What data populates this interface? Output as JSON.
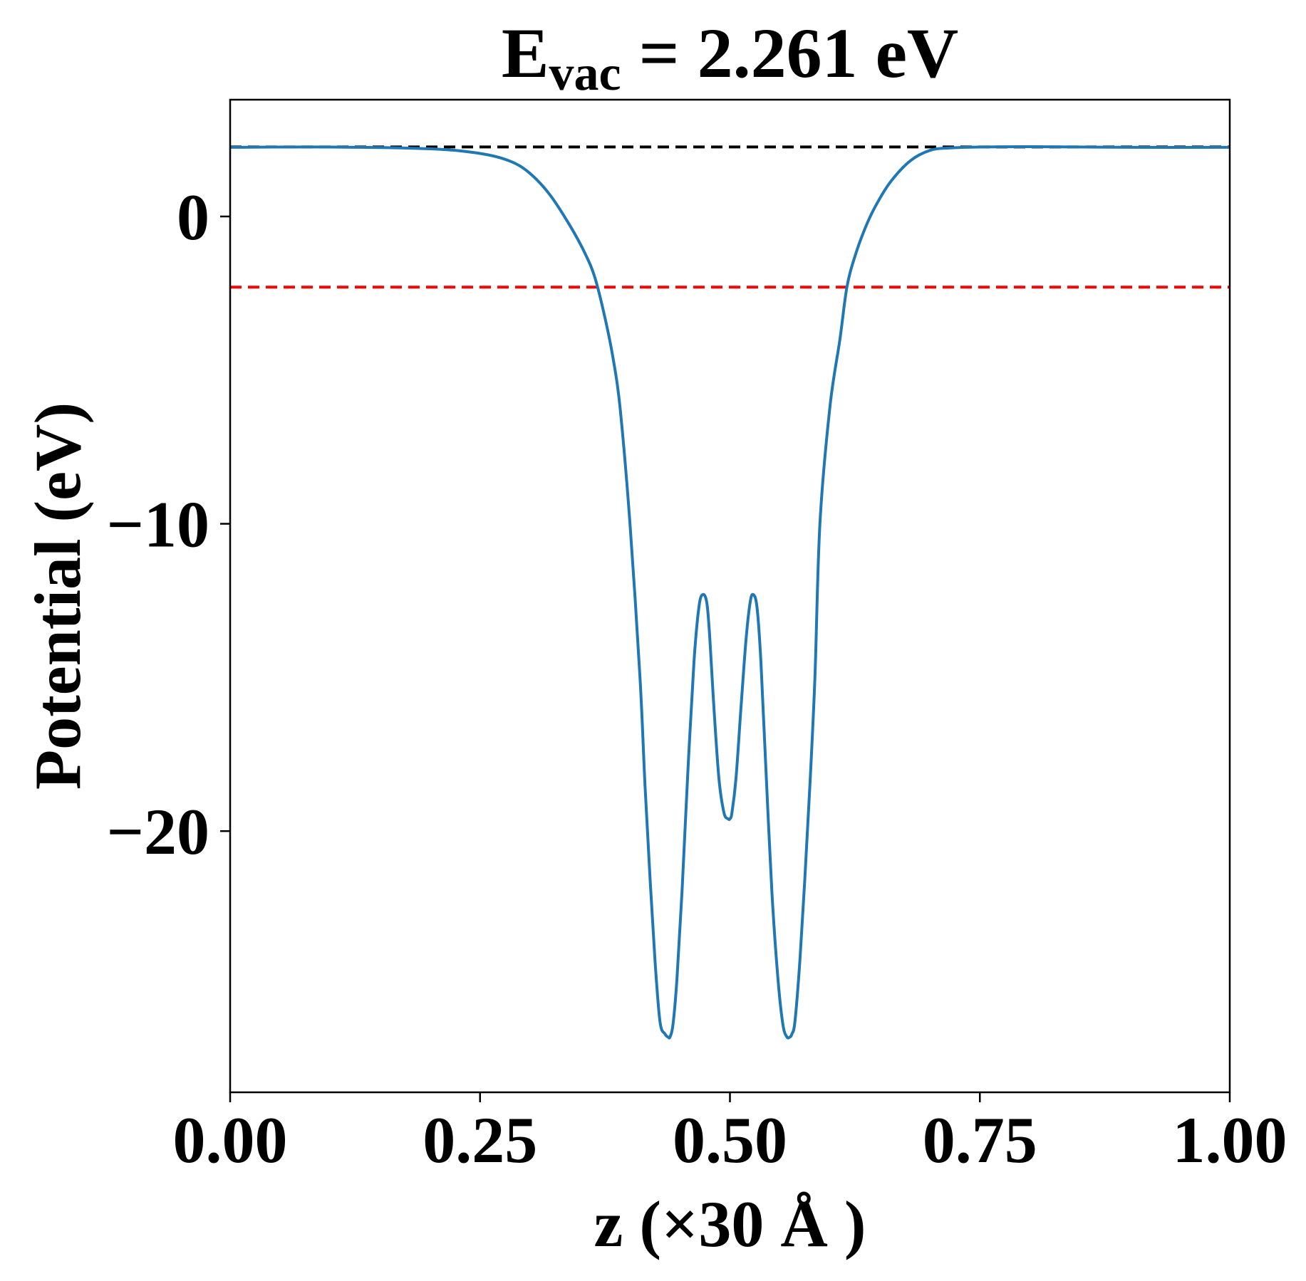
{
  "chart_data": {
    "type": "line",
    "title": {
      "prefix": "E",
      "subscript": "vac",
      "suffix": " = 2.261 eV"
    },
    "xlabel": "z (×30 Å )",
    "ylabel": "Potential (eV)",
    "xlim": [
      0.0,
      1.0
    ],
    "ylim": [
      -28.5,
      3.8
    ],
    "x_ticks": [
      {
        "value": 0.0,
        "label": "0.00"
      },
      {
        "value": 0.25,
        "label": "0.25"
      },
      {
        "value": 0.5,
        "label": "0.50"
      },
      {
        "value": 0.75,
        "label": "0.75"
      },
      {
        "value": 1.0,
        "label": "1.00"
      }
    ],
    "y_ticks": [
      {
        "value": 0,
        "label": "0"
      },
      {
        "value": -10,
        "label": "−10"
      },
      {
        "value": -20,
        "label": "−20"
      }
    ],
    "grid": false,
    "reference_lines": [
      {
        "y": 2.261,
        "color": "#000000",
        "style": "dashed"
      },
      {
        "y": -2.3,
        "color": "#ff0000",
        "style": "dashed"
      }
    ],
    "series": [
      {
        "color": "#1f77b4",
        "x": [
          0.0,
          0.1,
          0.2,
          0.25,
          0.28,
          0.3,
          0.32,
          0.34,
          0.355,
          0.365,
          0.375,
          0.383,
          0.39,
          0.4,
          0.41,
          0.415,
          0.42,
          0.425,
          0.43,
          0.435,
          0.438,
          0.44,
          0.443,
          0.447,
          0.452,
          0.458,
          0.464,
          0.469,
          0.473,
          0.477,
          0.48,
          0.484,
          0.489,
          0.494,
          0.498,
          0.5,
          0.502,
          0.506,
          0.511,
          0.516,
          0.52,
          0.523,
          0.527,
          0.531,
          0.536,
          0.542,
          0.548,
          0.553,
          0.557,
          0.56,
          0.562,
          0.565,
          0.57,
          0.575,
          0.58,
          0.585,
          0.59,
          0.6,
          0.61,
          0.617,
          0.625,
          0.635,
          0.645,
          0.66,
          0.68,
          0.7,
          0.72,
          0.75,
          0.8,
          0.9,
          1.0
        ],
        "y": [
          2.25,
          2.26,
          2.2,
          2.05,
          1.8,
          1.4,
          0.7,
          -0.3,
          -1.2,
          -2.0,
          -3.3,
          -4.6,
          -6.2,
          -10.0,
          -15.0,
          -18.5,
          -21.5,
          -24.2,
          -26.2,
          -26.6,
          -26.7,
          -26.7,
          -26.3,
          -24.8,
          -22.0,
          -18.0,
          -14.5,
          -12.7,
          -12.3,
          -12.6,
          -13.8,
          -16.0,
          -18.3,
          -19.4,
          -19.6,
          -19.6,
          -19.4,
          -18.3,
          -16.0,
          -13.8,
          -12.6,
          -12.3,
          -12.7,
          -14.5,
          -18.0,
          -22.0,
          -24.8,
          -26.3,
          -26.7,
          -26.7,
          -26.6,
          -26.2,
          -24.2,
          -21.5,
          -18.5,
          -15.0,
          -10.0,
          -6.2,
          -4.0,
          -2.3,
          -1.3,
          -0.4,
          0.3,
          1.1,
          1.8,
          2.15,
          2.23,
          2.26,
          2.27,
          2.25,
          2.25
        ]
      }
    ]
  }
}
